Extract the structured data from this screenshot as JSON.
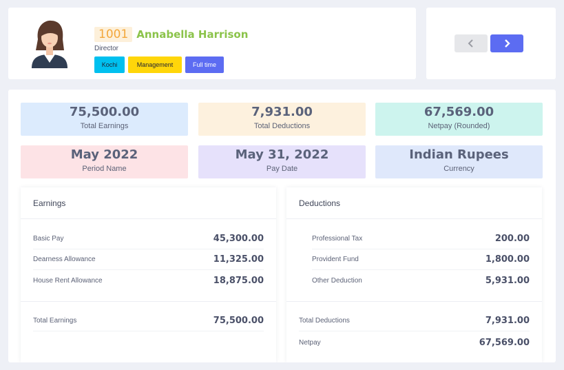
{
  "employee": {
    "id": "1001",
    "name": "Annabella Harrison",
    "designation": "Director",
    "tags": {
      "location": "Kochi",
      "department": "Management",
      "type": "Full time"
    }
  },
  "summary": {
    "total_earnings": {
      "value": "75,500.00",
      "label": "Total Earnings",
      "color": "#dcebfd"
    },
    "total_deductions": {
      "value": "7,931.00",
      "label": "Total Deductions",
      "color": "#fdf1de"
    },
    "netpay": {
      "value": "67,569.00",
      "label": "Netpay (Rounded)",
      "color": "#cdf4ee"
    },
    "period": {
      "value": "May 2022",
      "label": "Period Name",
      "color": "#fde3e6"
    },
    "pay_date": {
      "value": "May 31, 2022",
      "label": "Pay Date",
      "color": "#e6e1fb"
    },
    "currency": {
      "value": "Indian Rupees",
      "label": "Currency",
      "color": "#dfe8fb"
    }
  },
  "earnings": {
    "title": "Earnings",
    "items": [
      {
        "label": "Basic Pay",
        "value": "45,300.00"
      },
      {
        "label": "Dearness Allowance",
        "value": "11,325.00"
      },
      {
        "label": "House Rent Allowance",
        "value": "18,875.00"
      }
    ],
    "total": {
      "label": "Total Earnings",
      "value": "75,500.00"
    }
  },
  "deductions": {
    "title": "Deductions",
    "items": [
      {
        "label": "Professional Tax",
        "value": "200.00"
      },
      {
        "label": "Provident Fund",
        "value": "1,800.00"
      },
      {
        "label": "Other Deduction",
        "value": "5,931.00"
      }
    ],
    "total": {
      "label": "Total Deductions",
      "value": "7,931.00"
    },
    "netpay": {
      "label": "Netpay",
      "value": "67,569.00"
    }
  },
  "icons": {
    "avatar": "female-avatar-icon",
    "prev": "chevron-left-icon",
    "next": "chevron-right-icon"
  }
}
